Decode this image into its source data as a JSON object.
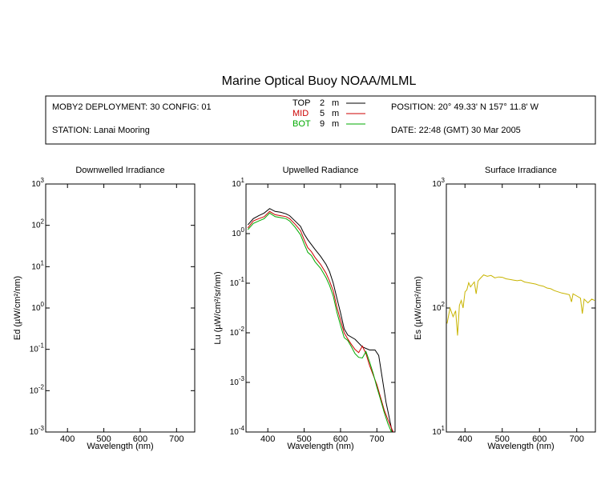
{
  "title": "Marine Optical Buoy NOAA/MLML",
  "info": {
    "deployment": "MOBY2 DEPLOYMENT: 30 CONFIG: 01",
    "station": "STATION: Lanai Mooring",
    "position": "POSITION: 20° 49.33' N   157° 11.8' W",
    "date": "DATE: 22:48 (GMT) 30 Mar 2005",
    "legend": [
      {
        "name": "TOP",
        "depth": "2",
        "unit": "m",
        "color": "#000000"
      },
      {
        "name": "MID",
        "depth": "5",
        "unit": "m",
        "color": "#cc0000"
      },
      {
        "name": "BOT",
        "depth": "9",
        "unit": "m",
        "color": "#00aa00"
      }
    ]
  },
  "chart_data": [
    {
      "type": "line",
      "title": "Downwelled Irradiance",
      "xlabel": "Wavelength (nm)",
      "ylabel": "Ed",
      "ylabel_unit": "(µW/cm²/nm)",
      "xlim": [
        340,
        750
      ],
      "ylim": [
        0.001,
        1000
      ],
      "yscale": "log",
      "xticks": [
        400,
        500,
        600,
        700
      ],
      "yticks": [
        {
          "base": "10",
          "exp": "-3",
          "value": 0.001
        },
        {
          "base": "10",
          "exp": "-2",
          "value": 0.01
        },
        {
          "base": "10",
          "exp": "-1",
          "value": 0.1
        },
        {
          "base": "10",
          "exp": "0",
          "value": 1
        },
        {
          "base": "10",
          "exp": "1",
          "value": 10
        },
        {
          "base": "10",
          "exp": "2",
          "value": 100
        },
        {
          "base": "10",
          "exp": "3",
          "value": 1000
        }
      ],
      "series": []
    },
    {
      "type": "line",
      "title": "Upwelled Radiance",
      "xlabel": "Wavelength (nm)",
      "ylabel": "Lu",
      "ylabel_unit": "(µW/cm²/sr/nm)",
      "xlim": [
        340,
        750
      ],
      "ylim": [
        0.0001,
        10
      ],
      "yscale": "log",
      "xticks": [
        400,
        500,
        600,
        700
      ],
      "yticks": [
        {
          "base": "10",
          "exp": "-4",
          "value": 0.0001
        },
        {
          "base": "10",
          "exp": "-3",
          "value": 0.001
        },
        {
          "base": "10",
          "exp": "-2",
          "value": 0.01
        },
        {
          "base": "10",
          "exp": "-1",
          "value": 0.1
        },
        {
          "base": "10",
          "exp": "0",
          "value": 1
        },
        {
          "base": "10",
          "exp": "1",
          "value": 10
        }
      ],
      "series": [
        {
          "name": "TOP",
          "color": "#000000",
          "x": [
            345,
            360,
            375,
            390,
            405,
            420,
            435,
            450,
            460,
            475,
            490,
            500,
            510,
            520,
            530,
            545,
            560,
            570,
            580,
            590,
            600,
            610,
            620,
            640,
            660,
            680,
            695,
            705,
            715,
            725,
            735,
            742,
            748
          ],
          "y": [
            1.5,
            2.0,
            2.3,
            2.6,
            3.2,
            2.8,
            2.7,
            2.5,
            2.3,
            1.8,
            1.4,
            0.98,
            0.75,
            0.6,
            0.48,
            0.35,
            0.24,
            0.17,
            0.1,
            0.05,
            0.025,
            0.012,
            0.009,
            0.0074,
            0.0052,
            0.0045,
            0.0045,
            0.0035,
            0.0012,
            0.0004,
            0.00018,
            0.0001,
            0.0001
          ]
        },
        {
          "name": "MID",
          "color": "#cc0000",
          "x": [
            345,
            360,
            375,
            390,
            405,
            420,
            435,
            450,
            460,
            475,
            490,
            500,
            510,
            520,
            530,
            545,
            560,
            570,
            580,
            590,
            600,
            610,
            620,
            630,
            640,
            650,
            660,
            670,
            680,
            690,
            700,
            710,
            720,
            730,
            740,
            745
          ],
          "y": [
            1.3,
            1.8,
            2.0,
            2.2,
            2.8,
            2.4,
            2.3,
            2.2,
            2.0,
            1.55,
            1.15,
            0.75,
            0.52,
            0.43,
            0.33,
            0.24,
            0.16,
            0.11,
            0.07,
            0.033,
            0.018,
            0.01,
            0.0075,
            0.0058,
            0.0046,
            0.004,
            0.0054,
            0.0038,
            0.0022,
            0.0014,
            0.0009,
            0.0005,
            0.00028,
            0.00018,
            0.00012,
            0.0001
          ]
        },
        {
          "name": "BOT",
          "color": "#00aa00",
          "x": [
            345,
            360,
            375,
            390,
            405,
            420,
            435,
            450,
            460,
            475,
            490,
            500,
            510,
            520,
            530,
            545,
            560,
            570,
            580,
            590,
            600,
            610,
            620,
            630,
            640,
            650,
            660,
            670,
            680,
            690,
            700,
            710,
            720,
            730,
            740
          ],
          "y": [
            1.2,
            1.6,
            1.8,
            2.0,
            2.6,
            2.2,
            2.1,
            2.0,
            1.8,
            1.35,
            0.95,
            0.62,
            0.42,
            0.36,
            0.27,
            0.2,
            0.13,
            0.09,
            0.055,
            0.026,
            0.014,
            0.008,
            0.007,
            0.0052,
            0.0038,
            0.0032,
            0.0031,
            0.0042,
            0.0026,
            0.0015,
            0.0008,
            0.00045,
            0.00025,
            0.00015,
            0.0001
          ]
        }
      ]
    },
    {
      "type": "line",
      "title": "Surface Irradiance",
      "xlabel": "Wavelength (nm)",
      "ylabel": "Es",
      "ylabel_unit": "(µW/cm²/nm)",
      "xlim": [
        350,
        750
      ],
      "ylim": [
        10,
        1000
      ],
      "yscale": "log",
      "xticks": [
        400,
        500,
        600,
        700
      ],
      "yticks": [
        {
          "base": "10",
          "exp": "1",
          "value": 10
        },
        {
          "base": "10",
          "exp": "2",
          "value": 100
        },
        {
          "base": "10",
          "exp": "3",
          "value": 1000
        }
      ],
      "series": [
        {
          "name": "Es",
          "color": "#c8b400",
          "x": [
            352,
            360,
            368,
            375,
            380,
            385,
            390,
            395,
            400,
            405,
            410,
            415,
            420,
            425,
            430,
            435,
            440,
            450,
            460,
            470,
            480,
            490,
            500,
            510,
            520,
            530,
            540,
            550,
            560,
            570,
            580,
            590,
            600,
            610,
            620,
            630,
            640,
            650,
            660,
            670,
            680,
            686,
            690,
            700,
            710,
            715,
            720,
            730,
            740,
            748
          ],
          "y": [
            75,
            100,
            85,
            95,
            60,
            105,
            115,
            100,
            135,
            140,
            160,
            148,
            155,
            162,
            130,
            165,
            172,
            185,
            180,
            183,
            175,
            178,
            177,
            172,
            170,
            168,
            166,
            168,
            162,
            160,
            158,
            156,
            152,
            150,
            145,
            143,
            138,
            135,
            132,
            130,
            128,
            112,
            130,
            125,
            120,
            90,
            118,
            110,
            118,
            115
          ]
        }
      ]
    }
  ]
}
